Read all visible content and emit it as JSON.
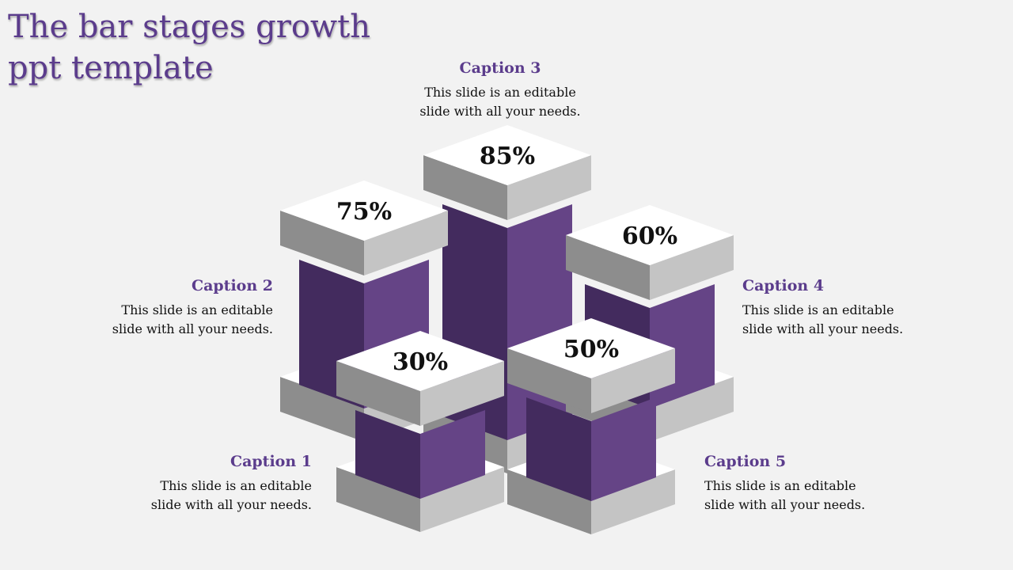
{
  "title": "The bar stages growth ppt template",
  "colors": {
    "accent": "#5b3c8c",
    "bar_dark": "#432b5e",
    "bar_light": "#654486",
    "slab_top": "#ffffff",
    "slab_left": "#8d8d8d",
    "slab_right": "#c4c4c4"
  },
  "stages": [
    {
      "caption": "Caption 1",
      "body": "This slide is an editable slide with all your needs.",
      "value": "30%"
    },
    {
      "caption": "Caption 2",
      "body": "This slide is an editable slide with all your needs.",
      "value": "75%"
    },
    {
      "caption": "Caption 3",
      "body": "This slide is an editable slide with all your needs.",
      "value": "85%"
    },
    {
      "caption": "Caption 4",
      "body": "This slide is an editable slide with all your needs.",
      "value": "60%"
    },
    {
      "caption": "Caption 5",
      "body": "This slide is an editable slide with all your needs.",
      "value": "50%"
    }
  ]
}
